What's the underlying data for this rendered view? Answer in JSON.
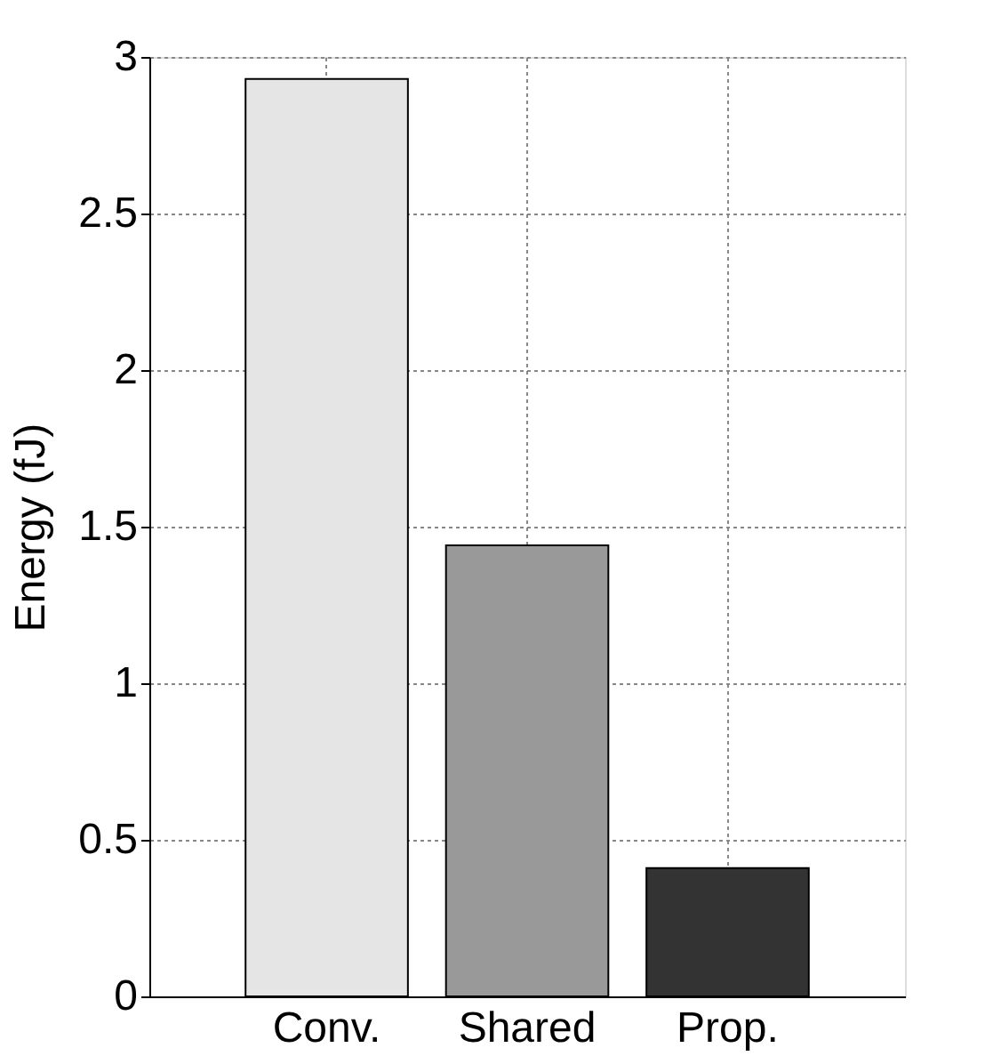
{
  "chart_data": {
    "type": "bar",
    "ylabel": "Energy (fJ)",
    "categories": [
      "Conv.",
      "Shared",
      "Prop."
    ],
    "values": [
      2.93,
      1.44,
      0.41
    ],
    "colors": [
      "#e5e5e5",
      "#999999",
      "#333333"
    ],
    "ylim": [
      0,
      3
    ],
    "yticks": [
      0,
      0.5,
      1,
      1.5,
      2,
      2.5,
      3
    ],
    "grid": true
  }
}
